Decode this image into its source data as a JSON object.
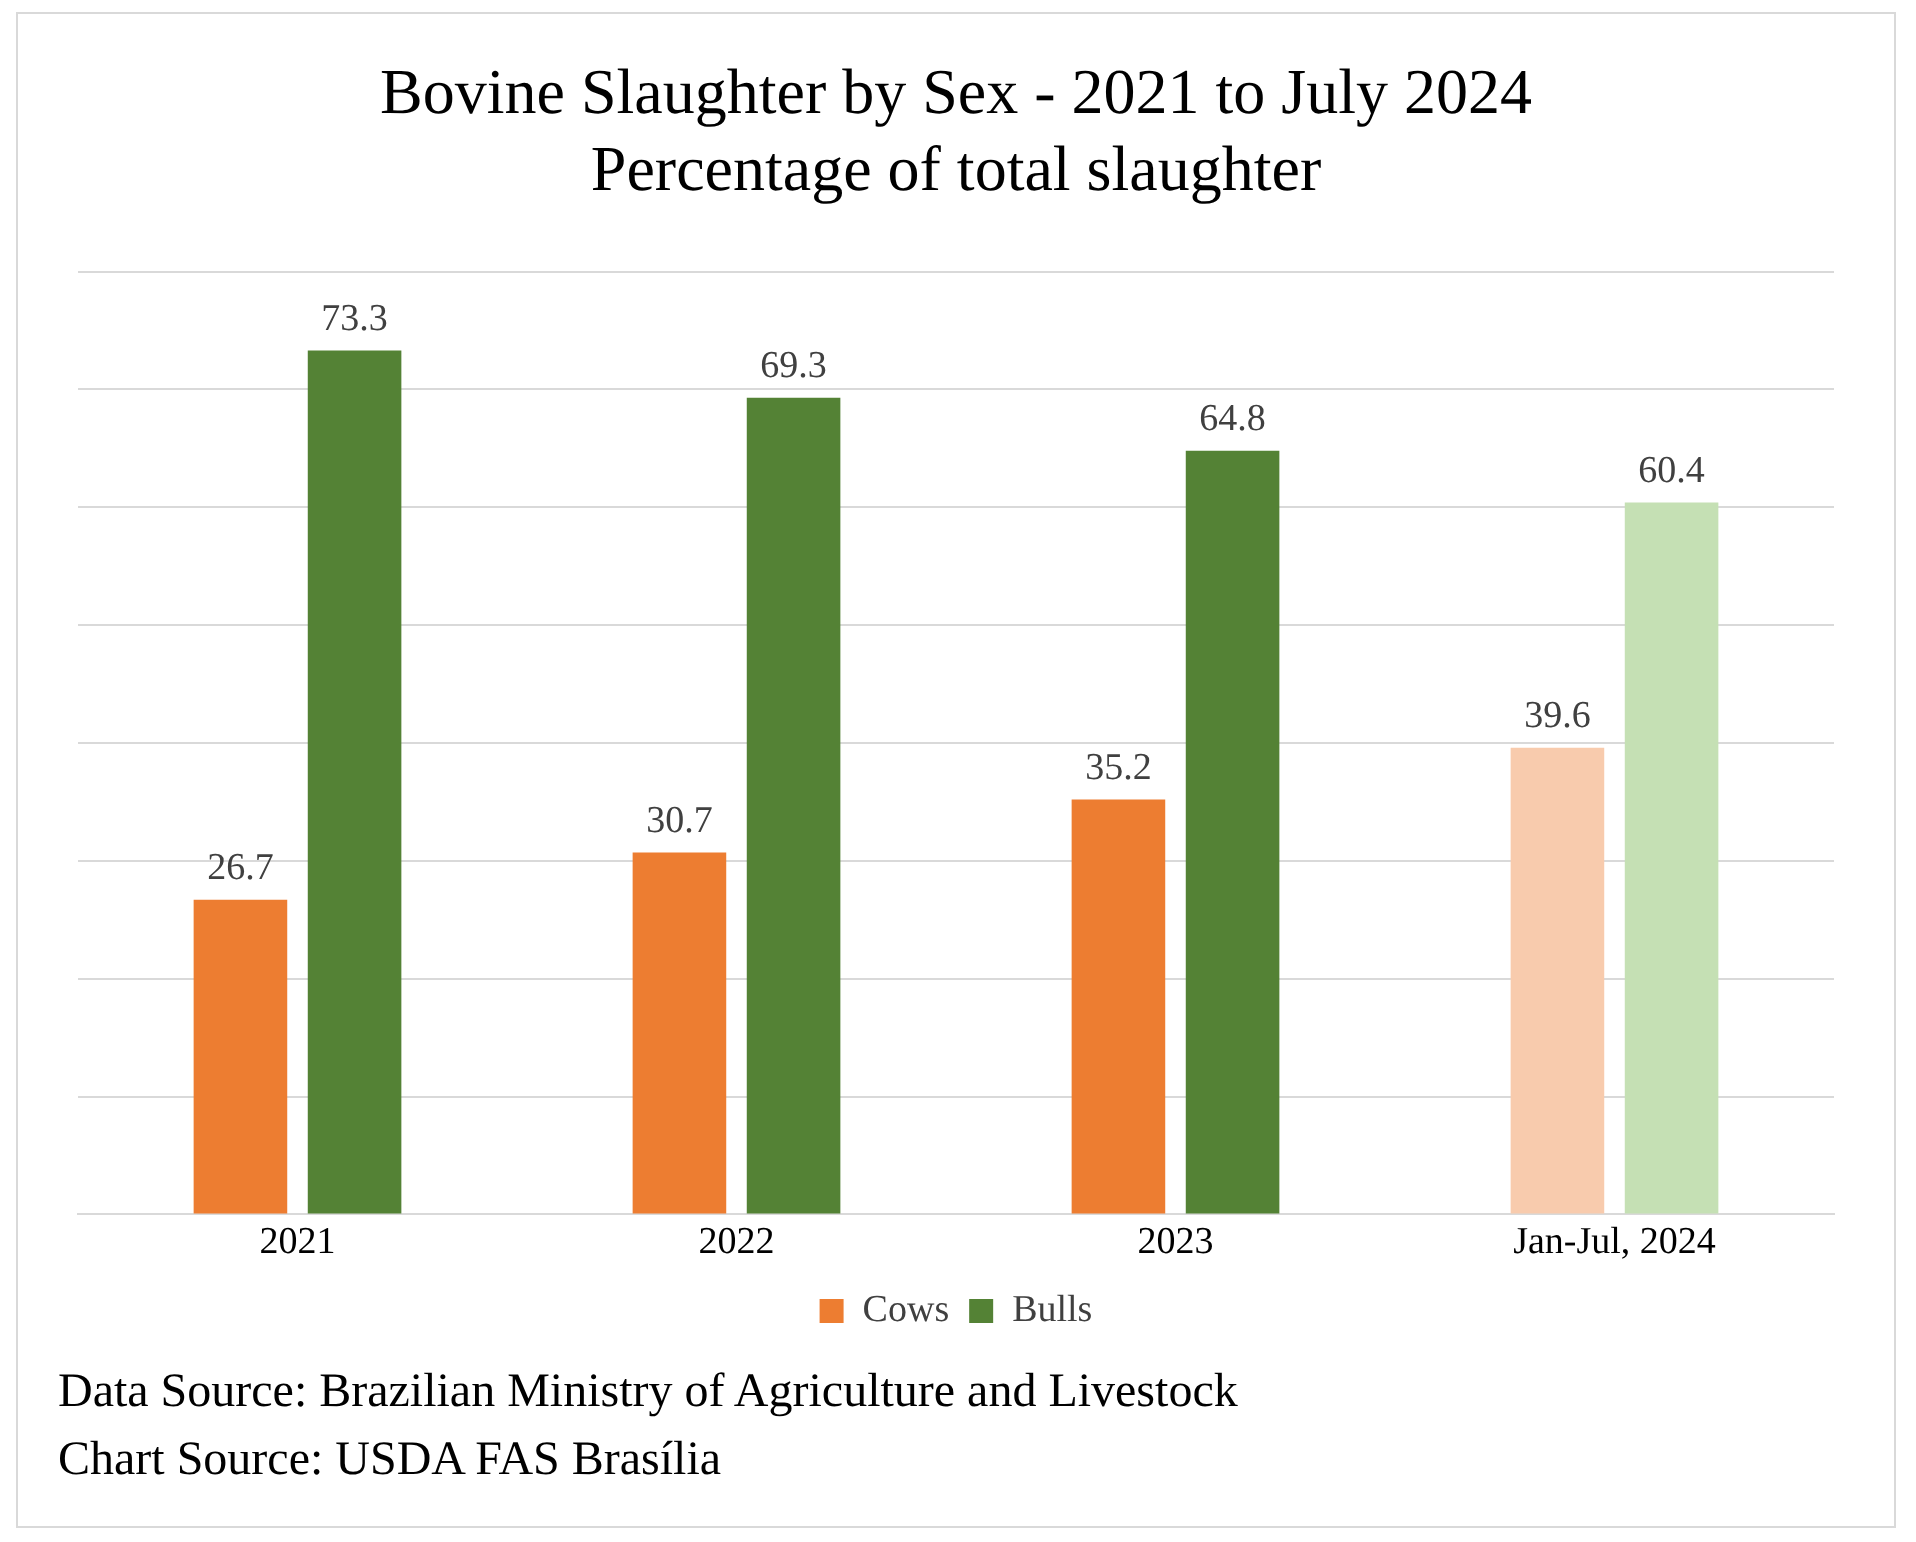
{
  "chart_data": {
    "type": "bar",
    "title": "Bovine Slaughter by Sex - 2021 to July 2024",
    "subtitle": "Percentage of total slaughter",
    "categories": [
      "2021",
      "2022",
      "2023",
      "Jan-Jul, 2024"
    ],
    "series": [
      {
        "name": "Cows",
        "color": "#ed7d31",
        "colors": [
          "#ed7d31",
          "#ed7d31",
          "#ed7d31",
          "#f8cbad"
        ],
        "values": [
          26.7,
          30.7,
          35.2,
          39.6
        ]
      },
      {
        "name": "Bulls",
        "color": "#548235",
        "colors": [
          "#548235",
          "#548235",
          "#548235",
          "#c5e0b4"
        ],
        "values": [
          73.3,
          69.3,
          64.8,
          60.4
        ]
      }
    ],
    "ylim": [
      0,
      80
    ],
    "yticks": [
      {
        "value": 0,
        "label": null
      },
      {
        "value": 10,
        "label": null
      },
      {
        "value": 20,
        "label": null
      },
      {
        "value": 30,
        "label": null
      },
      {
        "value": 40,
        "label": null
      },
      {
        "value": 50,
        "label": null
      },
      {
        "value": 60,
        "label": null
      },
      {
        "value": 70,
        "label": null
      },
      {
        "value": 80,
        "label": null
      }
    ],
    "tick_labels": "x",
    "grid": "y",
    "legend": "bottom",
    "data_labels": true,
    "annotations": [
      "Data Source: Brazilian Ministry of Agriculture and Livestock",
      "Chart Source: USDA FAS Brasília"
    ]
  }
}
